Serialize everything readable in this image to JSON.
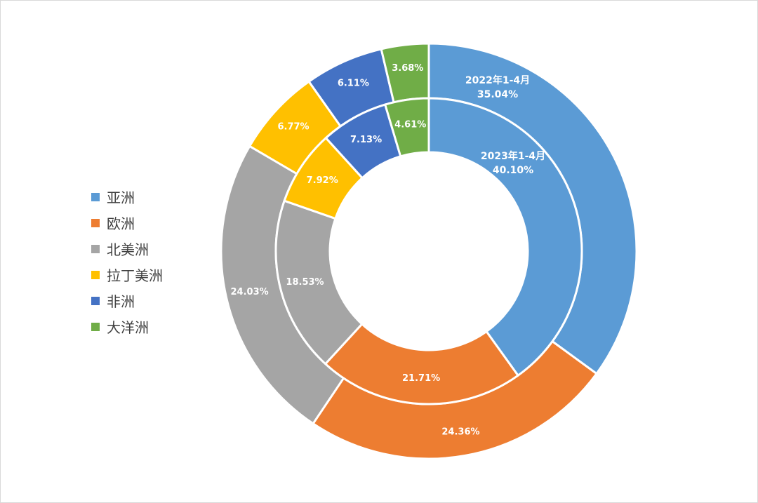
{
  "chart_data": {
    "type": "donut",
    "categories": [
      "亚洲",
      "欧洲",
      "北美洲",
      "拉丁美洲",
      "非洲",
      "大洋洲"
    ],
    "colors": [
      "#5b9bd5",
      "#ed7d31",
      "#a5a5a5",
      "#ffc000",
      "#4472c4",
      "#70ad47"
    ],
    "series": [
      {
        "name": "2022年1-4月",
        "ring": "outer",
        "values": [
          35.04,
          24.36,
          24.03,
          6.77,
          6.11,
          3.68
        ],
        "labels": [
          "35.04%",
          "24.36%",
          "24.03%",
          "6.77%",
          "6.11%",
          "3.68%"
        ]
      },
      {
        "name": "2023年1-4月",
        "ring": "inner",
        "values": [
          40.1,
          21.71,
          18.53,
          7.92,
          7.13,
          4.61
        ],
        "labels": [
          "40.10%",
          "21.71%",
          "18.53%",
          "7.92%",
          "7.13%",
          "4.61%"
        ]
      }
    ],
    "legend_position": "left",
    "start_angle": "top",
    "direction": "clockwise"
  }
}
